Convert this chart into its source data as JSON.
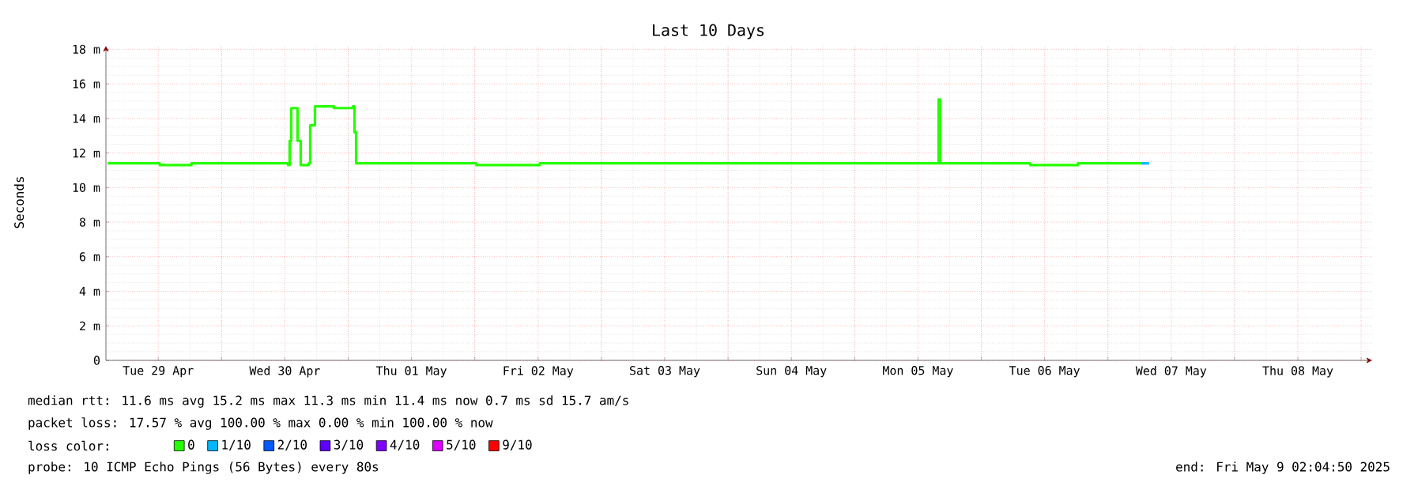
{
  "chart_data": {
    "type": "step",
    "title": "Last 10 Days",
    "ylabel": "Seconds",
    "x": [
      "2025-04-29T02:24",
      "2025-04-29T12:18",
      "2025-04-29T18:18",
      "2025-04-30T00:18",
      "2025-04-30T06:18",
      "2025-04-30T12:36",
      "2025-04-30T12:54",
      "2025-04-30T13:12",
      "2025-04-30T14:06",
      "2025-04-30T14:24",
      "2025-04-30T15:00",
      "2025-04-30T16:30",
      "2025-04-30T16:48",
      "2025-04-30T17:24",
      "2025-04-30T17:42",
      "2025-04-30T21:18",
      "2025-05-01T00:54",
      "2025-05-01T01:12",
      "2025-05-01T01:30",
      "2025-05-01T12:18",
      "2025-05-02T00:18",
      "2025-05-02T12:18",
      "2025-05-03T00:18",
      "2025-05-03T12:18",
      "2025-05-04T00:18",
      "2025-05-04T12:18",
      "2025-05-05T00:18",
      "2025-05-05T15:36",
      "2025-05-05T15:54",
      "2025-05-05T16:12",
      "2025-05-06T00:18",
      "2025-05-06T09:18",
      "2025-05-06T18:18",
      "2025-05-07T00:18",
      "2025-05-07T06:18",
      "2025-05-07T07:48"
    ],
    "series": [
      {
        "name": "0",
        "color": "#26ff00",
        "values": [
          11.4,
          11.3,
          11.4,
          11.4,
          11.4,
          11.3,
          12.7,
          14.6,
          14.6,
          12.7,
          11.3,
          11.4,
          13.6,
          13.6,
          14.7,
          14.6,
          14.7,
          13.2,
          11.4,
          11.4,
          11.3,
          11.4,
          11.4,
          11.4,
          11.4,
          11.4,
          11.4,
          11.4,
          15.1,
          11.4,
          11.4,
          11.3,
          11.4,
          11.4,
          11.4,
          null
        ]
      },
      {
        "name": "1/10",
        "color": "#00b8ff",
        "values": [
          null,
          null,
          null,
          null,
          null,
          null,
          null,
          null,
          null,
          null,
          null,
          null,
          null,
          null,
          null,
          null,
          null,
          null,
          null,
          null,
          null,
          null,
          null,
          null,
          null,
          null,
          null,
          null,
          null,
          null,
          null,
          null,
          null,
          null,
          11.4,
          11.4
        ]
      },
      {
        "name": "2/10",
        "color": "#0059ff",
        "values": [
          null,
          null,
          null,
          null,
          null,
          null,
          null,
          null,
          null,
          null,
          null,
          null,
          null,
          null,
          null,
          null,
          null,
          null,
          null,
          null,
          null,
          null,
          null,
          null,
          null,
          null,
          null,
          null,
          null,
          null,
          null,
          null,
          null,
          null,
          null,
          null
        ]
      },
      {
        "name": "3/10",
        "color": "#5e00ff",
        "values": [
          null,
          null,
          null,
          null,
          null,
          null,
          null,
          null,
          null,
          null,
          null,
          null,
          null,
          null,
          null,
          null,
          null,
          null,
          null,
          null,
          null,
          null,
          null,
          null,
          null,
          null,
          null,
          null,
          null,
          null,
          null,
          null,
          null,
          null,
          null,
          null
        ]
      },
      {
        "name": "4/10",
        "color": "#7e00ff",
        "values": [
          null,
          null,
          null,
          null,
          null,
          null,
          null,
          null,
          null,
          null,
          null,
          null,
          null,
          null,
          null,
          null,
          null,
          null,
          null,
          null,
          null,
          null,
          null,
          null,
          null,
          null,
          null,
          null,
          null,
          null,
          null,
          null,
          null,
          null,
          null,
          null
        ]
      },
      {
        "name": "5/10",
        "color": "#dd00ff",
        "values": [
          null,
          null,
          null,
          null,
          null,
          null,
          null,
          null,
          null,
          null,
          null,
          null,
          null,
          null,
          null,
          null,
          null,
          null,
          null,
          null,
          null,
          null,
          null,
          null,
          null,
          null,
          null,
          null,
          null,
          null,
          null,
          null,
          null,
          null,
          null,
          null
        ]
      },
      {
        "name": "9/10",
        "color": "#ff0000",
        "values": [
          null,
          null,
          null,
          null,
          null,
          null,
          null,
          null,
          null,
          null,
          null,
          null,
          null,
          null,
          null,
          null,
          null,
          null,
          null,
          null,
          null,
          null,
          null,
          null,
          null,
          null,
          null,
          null,
          null,
          null,
          null,
          null,
          null,
          null,
          null,
          null
        ]
      }
    ],
    "legend": "bottom",
    "legend_title": "loss color:",
    "xlim": [
      "2025-04-29T02:05",
      "2025-05-09T02:05"
    ],
    "xticks": [
      {
        "value": "2025-04-29T12:00",
        "label": "Tue 29 Apr"
      },
      {
        "value": "2025-04-30T12:00",
        "label": "Wed 30 Apr"
      },
      {
        "value": "2025-05-01T12:00",
        "label": "Thu 01 May"
      },
      {
        "value": "2025-05-02T12:00",
        "label": "Fri 02 May"
      },
      {
        "value": "2025-05-03T12:00",
        "label": "Sat 03 May"
      },
      {
        "value": "2025-05-04T12:00",
        "label": "Sun 04 May"
      },
      {
        "value": "2025-05-05T12:00",
        "label": "Mon 05 May"
      },
      {
        "value": "2025-05-06T12:00",
        "label": "Tue 06 May"
      },
      {
        "value": "2025-05-07T12:00",
        "label": "Wed 07 May"
      },
      {
        "value": "2025-05-08T12:00",
        "label": "Thu 08 May"
      },
      {
        "value": "2025-04-30T00:00",
        "label": null
      },
      {
        "value": "2025-05-01T00:00",
        "label": null
      },
      {
        "value": "2025-05-02T00:00",
        "label": null
      },
      {
        "value": "2025-05-03T00:00",
        "label": null
      },
      {
        "value": "2025-05-04T00:00",
        "label": null
      },
      {
        "value": "2025-05-05T00:00",
        "label": null
      },
      {
        "value": "2025-05-06T00:00",
        "label": null
      },
      {
        "value": "2025-05-07T00:00",
        "label": null
      },
      {
        "value": "2025-05-08T00:00",
        "label": null
      },
      {
        "value": "2025-05-09T00:00",
        "label": null
      }
    ],
    "ylim": [
      0,
      18.2
    ],
    "yticks": [
      0,
      {
        "value": 2,
        "label": "2 m"
      },
      {
        "value": 4,
        "label": "4 m"
      },
      {
        "value": 6,
        "label": "6 m"
      },
      {
        "value": 8,
        "label": "8 m"
      },
      {
        "value": 10,
        "label": "10 m"
      },
      {
        "value": 12,
        "label": "12 m"
      },
      {
        "value": 14,
        "label": "14 m"
      },
      {
        "value": 16,
        "label": "16 m"
      },
      {
        "value": 18,
        "label": "18 m"
      }
    ],
    "grid": true,
    "annotations": [
      "median rtt:  11.6 ms avg  15.2 ms max  11.3 ms min  11.4 ms now  0.7 ms sd  15.7   am/s",
      "packet loss: 17.57 % avg  100.00 % max  0.00 % min  100.00 % now",
      "probe:       10 ICMP Echo Pings (56 Bytes) every 80s",
      "end: Fri May  9 02:04:50 2025"
    ]
  }
}
